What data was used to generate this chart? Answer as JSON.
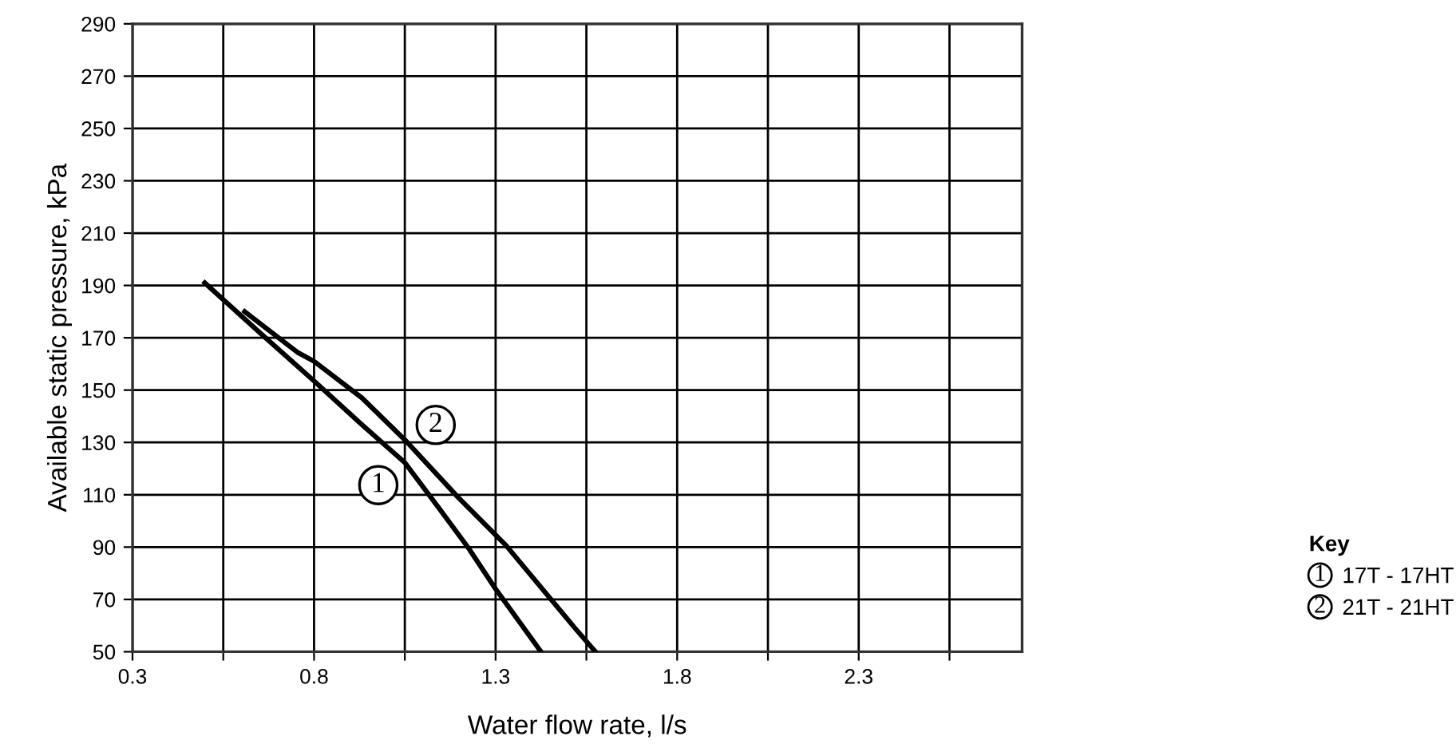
{
  "chart_data": {
    "type": "line",
    "xlabel": "Water flow rate, l/s",
    "ylabel": "Available static pressure, kPa",
    "legend_title": "Key",
    "series": [
      {
        "name": "17T - 17HT",
        "color": "#000000",
        "x": [
          0.499,
          0.65,
          0.8,
          0.93,
          1.05,
          1.138,
          1.226,
          1.3,
          1.425
        ],
        "values": [
          191,
          172,
          153.5,
          137,
          122.3,
          106,
          89.5,
          74,
          50
        ]
      },
      {
        "name": "21T - 21HT",
        "color": "#000000",
        "x": [
          0.609,
          0.756,
          0.8,
          0.932,
          1.05,
          1.197,
          1.329,
          1.52,
          1.575
        ],
        "values": [
          180,
          164.3,
          161,
          147,
          131,
          109,
          90.6,
          58.8,
          50
        ]
      }
    ],
    "annotations": [
      {
        "text": "1",
        "x": 0.977,
        "y": 113.7
      },
      {
        "text": "2",
        "x": 1.135,
        "y": 136.7
      }
    ],
    "xlim": [
      0.3,
      2.75
    ],
    "xticks": [
      0.3,
      {
        "value": 0.55,
        "label": null
      },
      0.8,
      {
        "value": 1.05,
        "label": null
      },
      1.3,
      {
        "value": 1.55,
        "label": null
      },
      1.8,
      {
        "value": 2.05,
        "label": null
      },
      2.3,
      {
        "value": 2.55,
        "label": null
      }
    ],
    "ylim": [
      50,
      290
    ],
    "yticks": [
      50,
      70,
      90,
      110,
      130,
      150,
      170,
      190,
      210,
      230,
      250,
      270,
      290
    ],
    "grid": true,
    "legend": "right",
    "marker": "none",
    "line_style": "solid"
  }
}
